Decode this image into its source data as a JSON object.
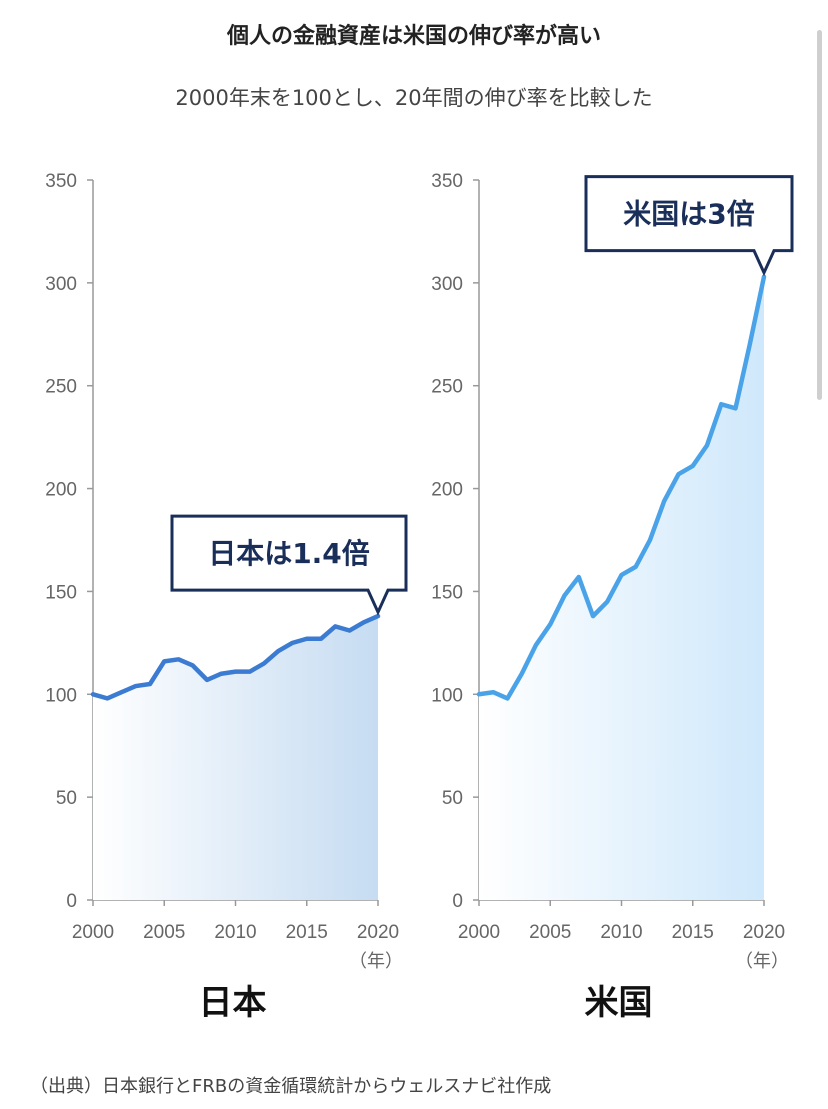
{
  "title": "個人の金融資産は米国の伸び率が高い",
  "subtitle": "2000年末を100とし、20年間の伸び率を比較した",
  "source": "（出典）日本銀行とFRBの資金循環統計からウェルスナビ社作成",
  "chart_data": [
    {
      "type": "area",
      "name_label": "日本",
      "callout": "日本は1.4倍",
      "x_unit": "（年）",
      "color": "#3b7bd1",
      "fill_color": "#c6dcf2",
      "ylim": [
        0,
        350
      ],
      "yticks": [
        0,
        50,
        100,
        150,
        200,
        250,
        300,
        350
      ],
      "xlim": [
        2000,
        2020
      ],
      "xticks": [
        2000,
        2005,
        2010,
        2015,
        2020
      ],
      "x": [
        2000,
        2001,
        2002,
        2003,
        2004,
        2005,
        2006,
        2007,
        2008,
        2009,
        2010,
        2011,
        2012,
        2013,
        2014,
        2015,
        2016,
        2017,
        2018,
        2019,
        2020
      ],
      "values": [
        100,
        98,
        101,
        104,
        105,
        116,
        117,
        114,
        107,
        110,
        111,
        111,
        115,
        121,
        125,
        127,
        127,
        133,
        131,
        135,
        138
      ]
    },
    {
      "type": "area",
      "name_label": "米国",
      "callout": "米国は3倍",
      "x_unit": "（年）",
      "color": "#4aa3e8",
      "fill_color": "#cfe8fb",
      "ylim": [
        0,
        350
      ],
      "yticks": [
        0,
        50,
        100,
        150,
        200,
        250,
        300,
        350
      ],
      "xlim": [
        2000,
        2020
      ],
      "xticks": [
        2000,
        2005,
        2010,
        2015,
        2020
      ],
      "x": [
        2000,
        2001,
        2002,
        2003,
        2004,
        2005,
        2006,
        2007,
        2008,
        2009,
        2010,
        2011,
        2012,
        2013,
        2014,
        2015,
        2016,
        2017,
        2018,
        2019,
        2020
      ],
      "values": [
        100,
        101,
        98,
        110,
        124,
        134,
        148,
        157,
        138,
        145,
        158,
        162,
        175,
        194,
        207,
        211,
        221,
        241,
        239,
        270,
        303
      ]
    }
  ]
}
